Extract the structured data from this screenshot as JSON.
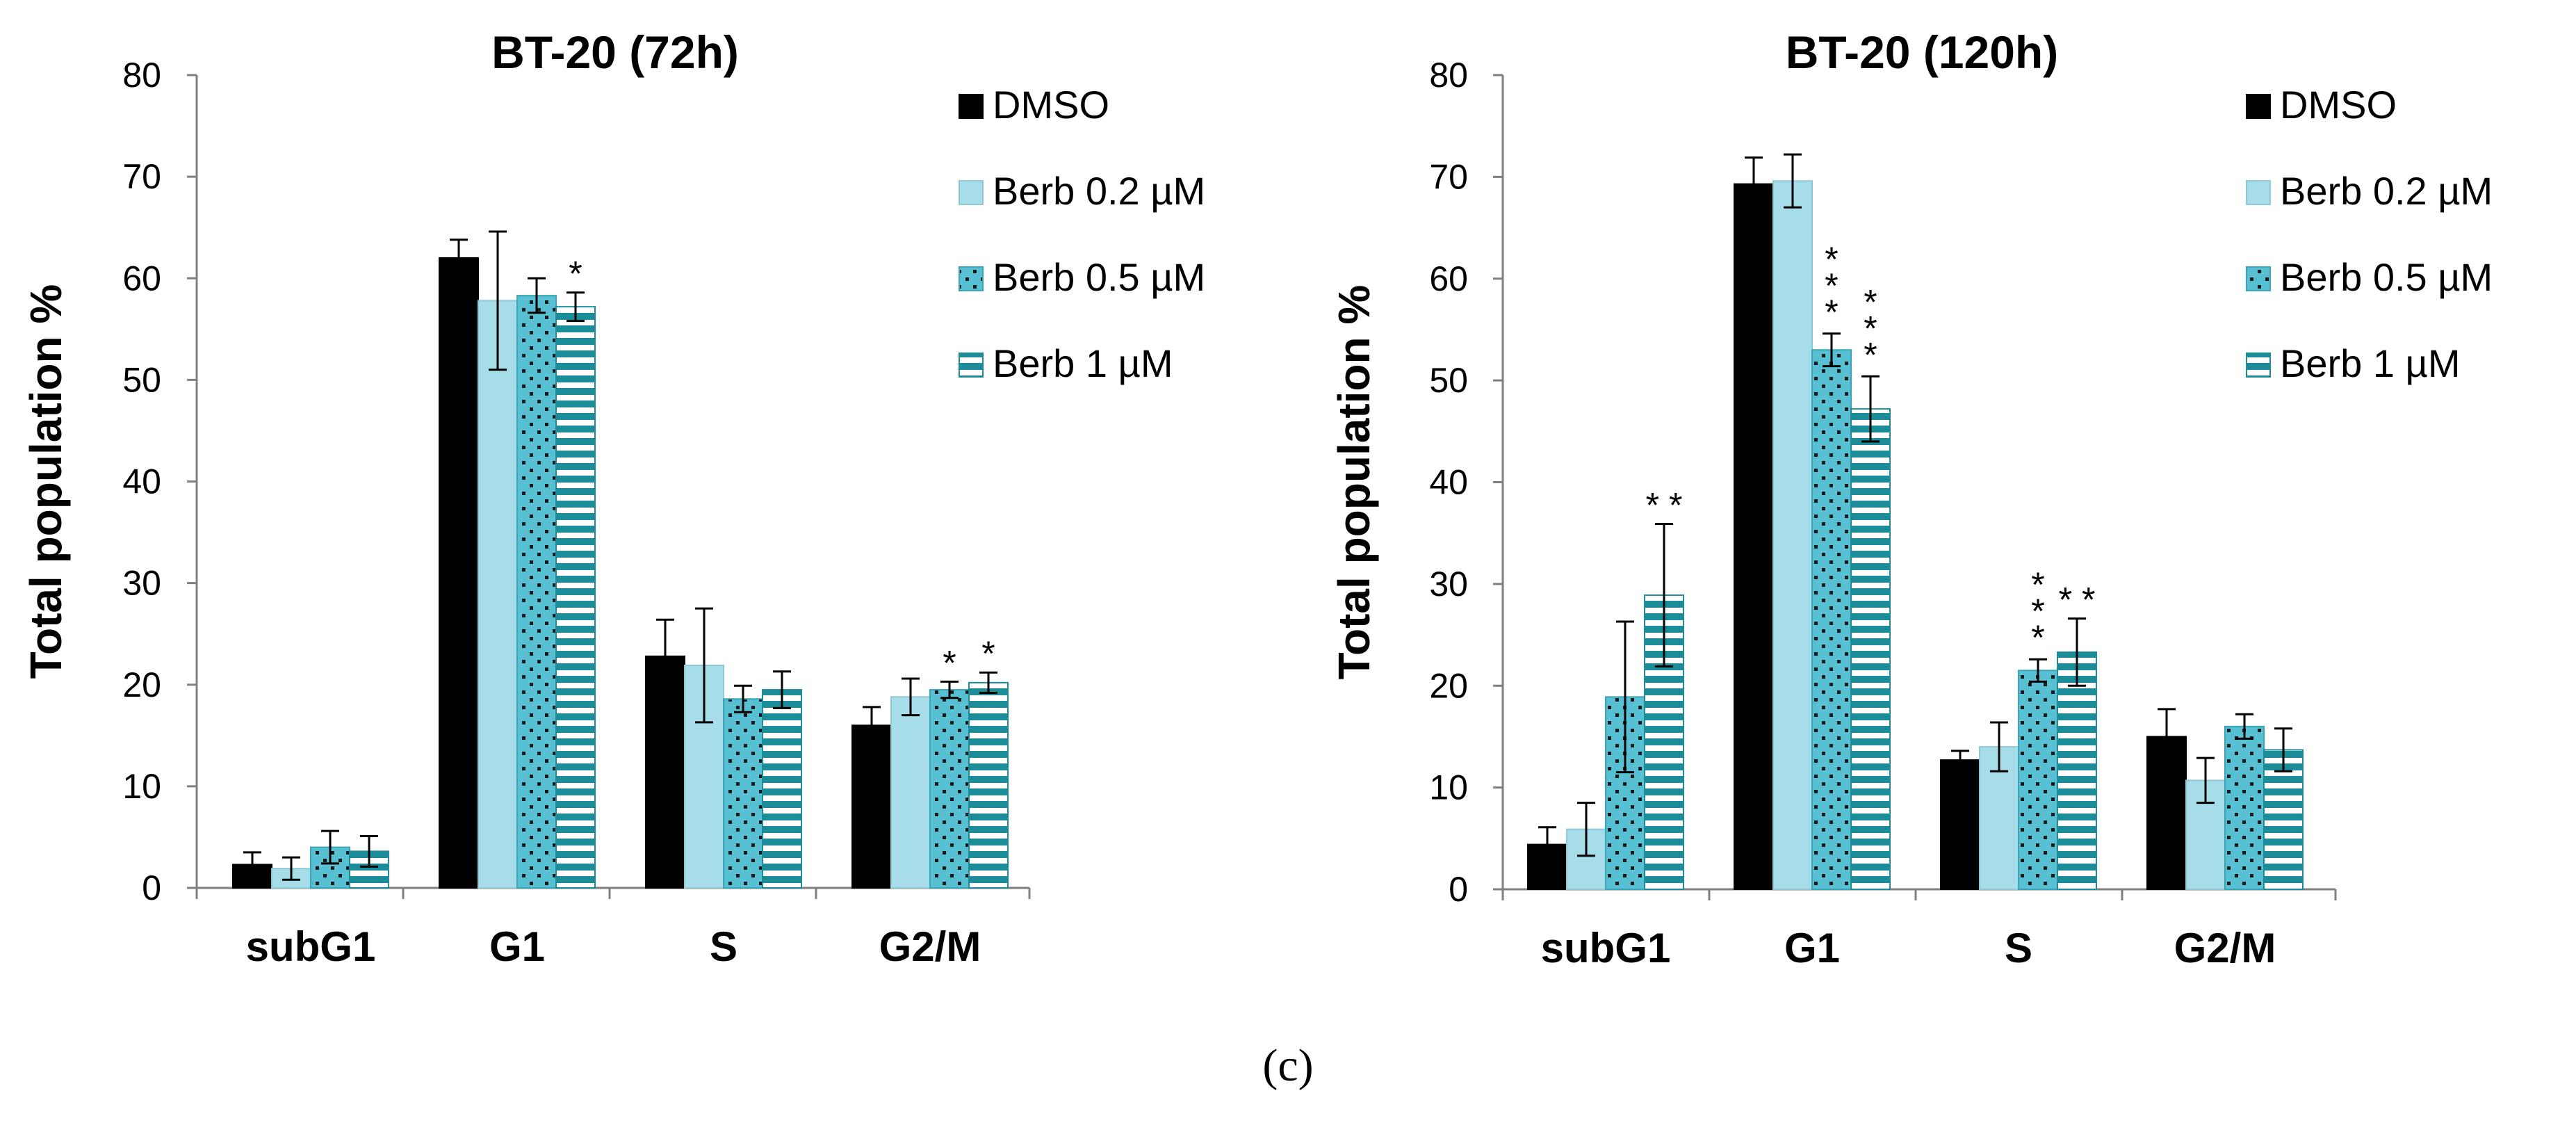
{
  "figure": {
    "panel_label": "(c)"
  },
  "legend": [
    {
      "label": "DMSO",
      "pattern": "solid-black",
      "fill": "#000000"
    },
    {
      "label": "Berb 0.2 µM",
      "pattern": "light-blue",
      "fill": "#a6dde8"
    },
    {
      "label": "Berb 0.5 µM",
      "pattern": "dots",
      "fill": "#57c0d3"
    },
    {
      "label": "Berb 1 µM",
      "pattern": "stripes",
      "fill": "#1b8c98"
    }
  ],
  "colors": {
    "dmso": "#000000",
    "berb02": "#a6dde8",
    "berb05": "#57c0d3",
    "berb1": "#1b8c98",
    "dots": "#1a1a1a",
    "axis": "#7f7f7f"
  },
  "chart_data": [
    {
      "type": "bar",
      "title": "BT-20 (72h)",
      "xlabel": "",
      "ylabel": "Total population %",
      "ylim": [
        0,
        80
      ],
      "yticks": [
        0,
        10,
        20,
        30,
        40,
        50,
        60,
        70,
        80
      ],
      "categories": [
        "subG1",
        "G1",
        "S",
        "G2/M"
      ],
      "series": [
        {
          "name": "DMSO",
          "values": [
            2.3,
            62.0,
            22.8,
            16.0
          ],
          "errors": [
            1.2,
            1.8,
            3.6,
            1.8
          ]
        },
        {
          "name": "Berb 0.2 µM",
          "values": [
            1.9,
            57.8,
            21.9,
            18.8
          ],
          "errors": [
            1.1,
            6.8,
            5.6,
            1.8
          ]
        },
        {
          "name": "Berb 0.5 µM",
          "values": [
            4.0,
            58.3,
            18.6,
            19.5
          ],
          "errors": [
            1.6,
            1.7,
            1.3,
            0.8
          ]
        },
        {
          "name": "Berb 1 µM",
          "values": [
            3.6,
            57.2,
            19.5,
            20.2
          ],
          "errors": [
            1.5,
            1.4,
            1.8,
            1.0
          ]
        }
      ],
      "annotations": [
        {
          "category": "G1",
          "series": "Berb 1 µM",
          "text": "*"
        },
        {
          "category": "G2/M",
          "series": "Berb 0.5 µM",
          "text": "*"
        },
        {
          "category": "G2/M",
          "series": "Berb 1 µM",
          "text": "*"
        }
      ],
      "legend_position": "top-right",
      "grid": false
    },
    {
      "type": "bar",
      "title": "BT-20 (120h)",
      "xlabel": "",
      "ylabel": "Total population %",
      "ylim": [
        0,
        80
      ],
      "yticks": [
        0,
        10,
        20,
        30,
        40,
        50,
        60,
        70,
        80
      ],
      "categories": [
        "subG1",
        "G1",
        "S",
        "G2/M"
      ],
      "series": [
        {
          "name": "DMSO",
          "values": [
            4.4,
            69.3,
            12.7,
            15.0
          ],
          "errors": [
            1.7,
            2.6,
            0.9,
            2.7
          ]
        },
        {
          "name": "Berb 0.2 µM",
          "values": [
            5.9,
            69.6,
            14.0,
            10.7
          ],
          "errors": [
            2.6,
            2.6,
            2.4,
            2.2
          ]
        },
        {
          "name": "Berb 0.5 µM",
          "values": [
            18.9,
            53.0,
            21.5,
            16.0
          ],
          "errors": [
            7.4,
            1.6,
            1.1,
            1.2
          ]
        },
        {
          "name": "Berb 1 µM",
          "values": [
            28.9,
            47.2,
            23.3,
            13.7
          ],
          "errors": [
            7.0,
            3.2,
            3.3,
            2.1
          ]
        }
      ],
      "annotations": [
        {
          "category": "subG1",
          "series": "Berb 1 µM",
          "text": "* *"
        },
        {
          "category": "G1",
          "series": "Berb 0.5 µM",
          "text": "* * *",
          "vertical": true
        },
        {
          "category": "G1",
          "series": "Berb 1 µM",
          "text": "* * *",
          "vertical": true
        },
        {
          "category": "S",
          "series": "Berb 0.5 µM",
          "text": "* * *",
          "vertical": true
        },
        {
          "category": "S",
          "series": "Berb 1 µM",
          "text": "* *"
        }
      ],
      "legend_position": "top-right",
      "grid": false
    }
  ]
}
